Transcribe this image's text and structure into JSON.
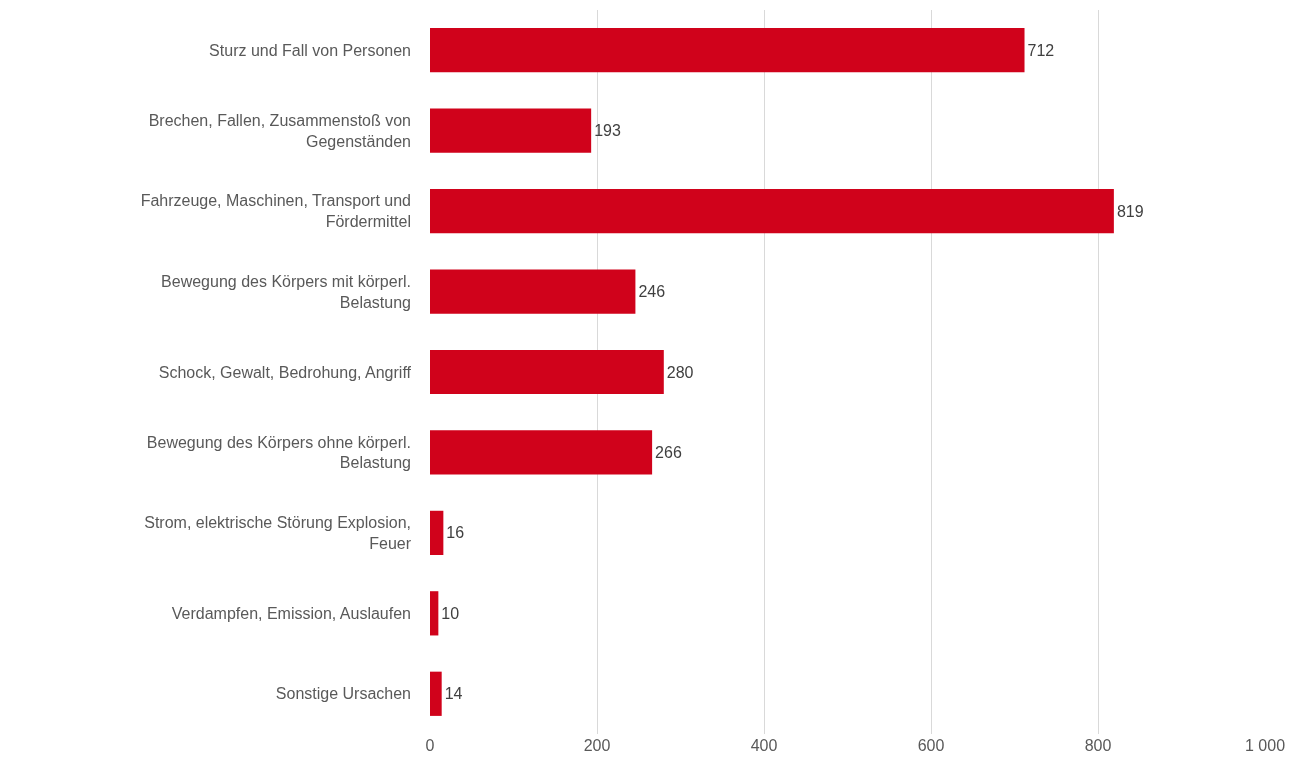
{
  "chart_data": {
    "type": "bar",
    "orientation": "horizontal",
    "categories": [
      "Sturz und Fall von Personen",
      "Brechen, Fallen, Zusammenstoß von Gegenständen",
      "Fahrzeuge, Maschinen, Transport und Fördermittel",
      "Bewegung des Körpers mit körperl. Belastung",
      "Schock, Gewalt, Bedrohung, Angriff",
      "Bewegung des Körpers ohne körperl. Belastung",
      "Strom, elektrische Störung Explosion, Feuer",
      "Verdampfen, Emission, Auslaufen",
      "Sonstige Ursachen"
    ],
    "values": [
      712,
      193,
      819,
      246,
      280,
      266,
      16,
      10,
      14
    ],
    "color": "#d0021b",
    "xlim": [
      0,
      1000
    ],
    "xticks": [
      0,
      200,
      400,
      600,
      800,
      {
        "value": 1000,
        "label": "1 000"
      }
    ],
    "grid": "x",
    "data_labels": true
  }
}
